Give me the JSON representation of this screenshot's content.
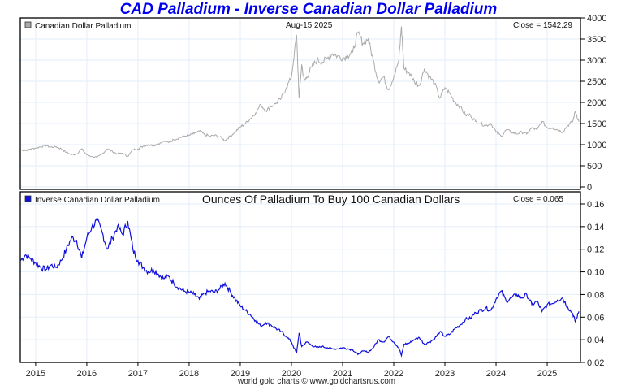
{
  "title": "CAD Palladium - Inverse Canadian Dollar Palladium",
  "footer": "world gold charts © www.goldchartsrus.com",
  "colors": {
    "title": "#0000ee",
    "top_series": "#aaaaaa",
    "bottom_series": "#1010dd",
    "grid": "#e3eef8"
  },
  "chart_data": [
    {
      "type": "line",
      "panel": "top",
      "legend": "Canadian Dollar Palladium",
      "legend_placement": "top-left",
      "date_label": "Aug-15  2025",
      "close_label": "Close = 1542.29",
      "ylim": [
        0,
        4000
      ],
      "yticks": [
        0,
        500,
        1000,
        1500,
        2000,
        2500,
        3000,
        3500,
        4000
      ],
      "xlim": [
        2014.7,
        2025.65
      ],
      "xticks": [
        2015,
        2016,
        2017,
        2018,
        2019,
        2020,
        2021,
        2022,
        2023,
        2024,
        2025
      ],
      "grid": true,
      "series": [
        {
          "name": "Canadian Dollar Palladium",
          "x": [
            2014.7,
            2014.8,
            2014.9,
            2015.0,
            2015.1,
            2015.2,
            2015.3,
            2015.4,
            2015.5,
            2015.6,
            2015.7,
            2015.8,
            2015.9,
            2016.0,
            2016.1,
            2016.2,
            2016.3,
            2016.4,
            2016.5,
            2016.6,
            2016.7,
            2016.8,
            2016.9,
            2017.0,
            2017.1,
            2017.2,
            2017.3,
            2017.4,
            2017.5,
            2017.6,
            2017.7,
            2017.8,
            2017.9,
            2018.0,
            2018.1,
            2018.2,
            2018.3,
            2018.4,
            2018.5,
            2018.6,
            2018.7,
            2018.8,
            2018.9,
            2019.0,
            2019.1,
            2019.2,
            2019.3,
            2019.4,
            2019.5,
            2019.6,
            2019.7,
            2019.8,
            2019.9,
            2020.0,
            2020.1,
            2020.15,
            2020.2,
            2020.25,
            2020.3,
            2020.4,
            2020.5,
            2020.6,
            2020.7,
            2020.8,
            2020.9,
            2021.0,
            2021.1,
            2021.2,
            2021.3,
            2021.4,
            2021.5,
            2021.6,
            2021.7,
            2021.8,
            2021.9,
            2022.0,
            2022.1,
            2022.15,
            2022.2,
            2022.3,
            2022.4,
            2022.5,
            2022.6,
            2022.7,
            2022.8,
            2022.9,
            2023.0,
            2023.1,
            2023.2,
            2023.3,
            2023.4,
            2023.5,
            2023.6,
            2023.7,
            2023.8,
            2023.9,
            2024.0,
            2024.1,
            2024.2,
            2024.3,
            2024.4,
            2024.5,
            2024.6,
            2024.7,
            2024.8,
            2024.9,
            2025.0,
            2025.1,
            2025.2,
            2025.3,
            2025.4,
            2025.5,
            2025.55,
            2025.62
          ],
          "y": [
            880,
            860,
            900,
            920,
            950,
            980,
            940,
            950,
            900,
            820,
            760,
            780,
            900,
            760,
            720,
            700,
            780,
            900,
            840,
            780,
            800,
            720,
            880,
            900,
            960,
            1000,
            980,
            1020,
            1080,
            1050,
            1120,
            1160,
            1200,
            1220,
            1260,
            1320,
            1240,
            1200,
            1220,
            1180,
            1100,
            1200,
            1300,
            1420,
            1500,
            1620,
            1750,
            1950,
            1800,
            1900,
            1980,
            2100,
            2350,
            2600,
            3600,
            2100,
            2900,
            2500,
            2600,
            2850,
            3000,
            2950,
            3050,
            3150,
            3100,
            3050,
            3100,
            3200,
            3650,
            3400,
            3500,
            3000,
            2500,
            2600,
            2300,
            2600,
            3000,
            3800,
            2800,
            2700,
            2500,
            2400,
            2800,
            2600,
            2450,
            2100,
            2350,
            2200,
            2000,
            1900,
            1700,
            1700,
            1550,
            1500,
            1450,
            1500,
            1300,
            1200,
            1350,
            1300,
            1250,
            1300,
            1250,
            1400,
            1350,
            1550,
            1400,
            1400,
            1350,
            1300,
            1450,
            1550,
            1800,
            1542
          ]
        }
      ]
    },
    {
      "type": "line",
      "panel": "bottom",
      "legend": "Inverse Canadian Dollar Palladium",
      "legend_placement": "top-left",
      "title": "Ounces Of Palladium To Buy 100 Canadian Dollars",
      "close_label": "Close = 0.065",
      "ylim": [
        0.02,
        0.16
      ],
      "yticks": [
        0.02,
        0.04,
        0.06,
        0.08,
        0.1,
        0.12,
        0.14,
        0.16
      ],
      "xlim": [
        2014.7,
        2025.65
      ],
      "xticks": [
        2015,
        2016,
        2017,
        2018,
        2019,
        2020,
        2021,
        2022,
        2023,
        2024,
        2025
      ],
      "xlabel_ticks": [
        "2015",
        "2016",
        "2017",
        "2018",
        "2019",
        "2020",
        "2021",
        "2022",
        "2023",
        "2024",
        "2025"
      ],
      "grid": true,
      "series": [
        {
          "name": "Inverse Canadian Dollar Palladium",
          "x": [
            2014.7,
            2014.8,
            2014.9,
            2015.0,
            2015.1,
            2015.2,
            2015.3,
            2015.4,
            2015.5,
            2015.6,
            2015.7,
            2015.8,
            2015.9,
            2016.0,
            2016.1,
            2016.2,
            2016.3,
            2016.4,
            2016.5,
            2016.6,
            2016.7,
            2016.8,
            2016.9,
            2017.0,
            2017.1,
            2017.2,
            2017.3,
            2017.4,
            2017.5,
            2017.6,
            2017.7,
            2017.8,
            2017.9,
            2018.0,
            2018.1,
            2018.2,
            2018.3,
            2018.4,
            2018.5,
            2018.6,
            2018.7,
            2018.8,
            2018.9,
            2019.0,
            2019.1,
            2019.2,
            2019.3,
            2019.4,
            2019.5,
            2019.6,
            2019.7,
            2019.8,
            2019.9,
            2020.0,
            2020.1,
            2020.15,
            2020.2,
            2020.3,
            2020.4,
            2020.5,
            2020.6,
            2020.7,
            2020.8,
            2020.9,
            2021.0,
            2021.1,
            2021.2,
            2021.3,
            2021.4,
            2021.5,
            2021.6,
            2021.7,
            2021.8,
            2021.9,
            2022.0,
            2022.1,
            2022.15,
            2022.2,
            2022.3,
            2022.4,
            2022.5,
            2022.6,
            2022.7,
            2022.8,
            2022.9,
            2023.0,
            2023.1,
            2023.2,
            2023.3,
            2023.4,
            2023.5,
            2023.6,
            2023.7,
            2023.8,
            2023.9,
            2024.0,
            2024.1,
            2024.2,
            2024.3,
            2024.4,
            2024.5,
            2024.6,
            2024.7,
            2024.8,
            2024.9,
            2025.0,
            2025.1,
            2025.2,
            2025.3,
            2025.4,
            2025.5,
            2025.55,
            2025.62
          ],
          "y": [
            0.11,
            0.115,
            0.112,
            0.108,
            0.104,
            0.102,
            0.106,
            0.104,
            0.11,
            0.12,
            0.13,
            0.128,
            0.112,
            0.13,
            0.14,
            0.145,
            0.135,
            0.12,
            0.13,
            0.14,
            0.133,
            0.145,
            0.12,
            0.11,
            0.104,
            0.1,
            0.102,
            0.098,
            0.094,
            0.096,
            0.09,
            0.086,
            0.083,
            0.082,
            0.08,
            0.076,
            0.081,
            0.083,
            0.082,
            0.085,
            0.09,
            0.083,
            0.076,
            0.07,
            0.066,
            0.062,
            0.057,
            0.052,
            0.055,
            0.053,
            0.05,
            0.047,
            0.043,
            0.038,
            0.028,
            0.046,
            0.034,
            0.038,
            0.035,
            0.033,
            0.034,
            0.033,
            0.032,
            0.032,
            0.033,
            0.032,
            0.031,
            0.027,
            0.03,
            0.029,
            0.033,
            0.04,
            0.038,
            0.043,
            0.038,
            0.033,
            0.026,
            0.036,
            0.037,
            0.04,
            0.042,
            0.036,
            0.038,
            0.041,
            0.047,
            0.043,
            0.045,
            0.05,
            0.053,
            0.058,
            0.059,
            0.064,
            0.066,
            0.068,
            0.066,
            0.076,
            0.083,
            0.074,
            0.077,
            0.08,
            0.077,
            0.08,
            0.071,
            0.074,
            0.065,
            0.071,
            0.072,
            0.075,
            0.077,
            0.069,
            0.063,
            0.056,
            0.065
          ]
        }
      ]
    }
  ]
}
